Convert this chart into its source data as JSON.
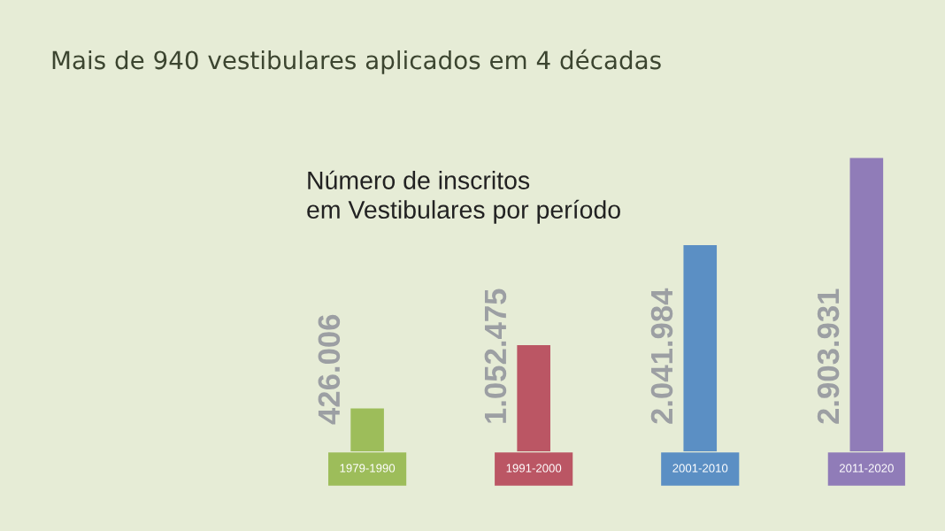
{
  "chart_data": {
    "type": "bar",
    "title": "Mais de 940 vestibulares aplicados em 4 décadas",
    "subtitle": "Número de inscritos\nem Vestibulares por período",
    "categories": [
      "1979-1990",
      "1991-2000",
      "2001-2010",
      "2011-2020"
    ],
    "values": [
      426006,
      1052475,
      2041984,
      2903931
    ],
    "value_labels": [
      "426.006",
      "1.052.475",
      "2.041.984",
      "2.903.931"
    ],
    "colors": [
      "#9dbd5a",
      "#bb5664",
      "#5b8fc4",
      "#907cb8"
    ],
    "grid": false,
    "legend": false
  }
}
